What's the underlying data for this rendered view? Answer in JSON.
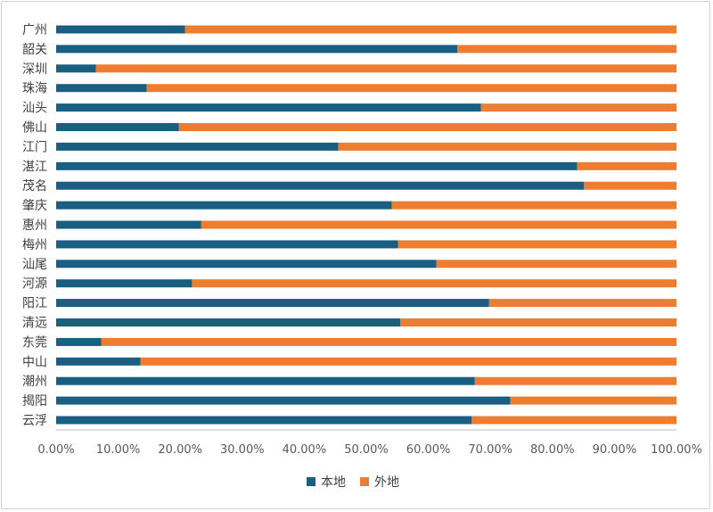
{
  "chart_data": {
    "type": "bar",
    "orientation": "horizontal",
    "stacked": "percent",
    "categories": [
      "广州",
      "韶关",
      "深圳",
      "珠海",
      "汕头",
      "佛山",
      "江门",
      "湛江",
      "茂名",
      "肇庆",
      "惠州",
      "梅州",
      "汕尾",
      "河源",
      "阳江",
      "清远",
      "东莞",
      "中山",
      "潮州",
      "揭阳",
      "云浮"
    ],
    "series": [
      {
        "name": "本地",
        "color": "#1a5e82",
        "values": [
          0.208,
          0.647,
          0.064,
          0.146,
          0.685,
          0.198,
          0.455,
          0.84,
          0.851,
          0.541,
          0.234,
          0.551,
          0.613,
          0.219,
          0.698,
          0.555,
          0.073,
          0.136,
          0.675,
          0.732,
          0.67
        ]
      },
      {
        "name": "外地",
        "color": "#ed7d31",
        "values": [
          0.792,
          0.353,
          0.936,
          0.854,
          0.315,
          0.802,
          0.545,
          0.16,
          0.149,
          0.459,
          0.766,
          0.449,
          0.387,
          0.781,
          0.302,
          0.445,
          0.927,
          0.864,
          0.325,
          0.268,
          0.33
        ]
      }
    ],
    "x_ticks": [
      "0.00%",
      "10.00%",
      "20.00%",
      "30.00%",
      "40.00%",
      "50.00%",
      "60.00%",
      "70.00%",
      "80.00%",
      "90.00%",
      "100.00%"
    ],
    "xlim": [
      0,
      1
    ],
    "grid": false,
    "legend_position": "bottom",
    "title": "",
    "xlabel": "",
    "ylabel": ""
  }
}
